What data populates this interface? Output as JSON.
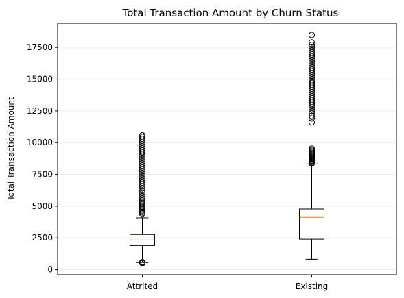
{
  "chart_data": {
    "type": "box",
    "title": "Total Transaction Amount by Churn Status",
    "xlabel": "",
    "ylabel": "Total Transaction Amount",
    "categories": [
      "Attrited",
      "Existing"
    ],
    "ylim": [
      -400,
      19400
    ],
    "yticks": [
      0,
      2500,
      5000,
      7500,
      10000,
      12500,
      15000,
      17500
    ],
    "grid": "horizontal",
    "colors": {
      "box": "#000000",
      "median": "#ff7f0e",
      "grid": "#e6e6e6"
    },
    "boxes": [
      {
        "category": "Attrited",
        "whisker_low": 560,
        "q1": 1900,
        "median": 2330,
        "q3": 2770,
        "whisker_high": 4080,
        "outliers": [
          510,
          560,
          600,
          4350,
          4450,
          4550,
          4650,
          4750,
          4850,
          4950,
          5050,
          5150,
          5250,
          5350,
          5450,
          5600,
          5750,
          5900,
          6050,
          6200,
          6400,
          6550,
          6700,
          6850,
          7000,
          7150,
          7300,
          7450,
          7600,
          7750,
          7900,
          8050,
          8200,
          8350,
          8500,
          8650,
          8800,
          8950,
          9100,
          9250,
          9400,
          9550,
          9700,
          9850,
          10000,
          10150,
          10300,
          10450,
          10580
        ]
      },
      {
        "category": "Existing",
        "whisker_low": 820,
        "q1": 2400,
        "median": 4120,
        "q3": 4780,
        "whisker_high": 8320,
        "outliers": [
          8350,
          8420,
          8500,
          8580,
          8660,
          8740,
          8820,
          8900,
          8980,
          9060,
          9140,
          9220,
          9300,
          9380,
          9460,
          9540,
          11600,
          11900,
          12100,
          12300,
          12450,
          12600,
          12750,
          12900,
          13050,
          13200,
          13350,
          13500,
          13650,
          13800,
          13950,
          14100,
          14250,
          14400,
          14550,
          14700,
          14850,
          15000,
          15150,
          15300,
          15450,
          15600,
          15750,
          15900,
          16050,
          16200,
          16350,
          16500,
          16650,
          16800,
          16950,
          17100,
          17250,
          17400,
          17550,
          17700,
          17900,
          18480
        ]
      }
    ]
  }
}
